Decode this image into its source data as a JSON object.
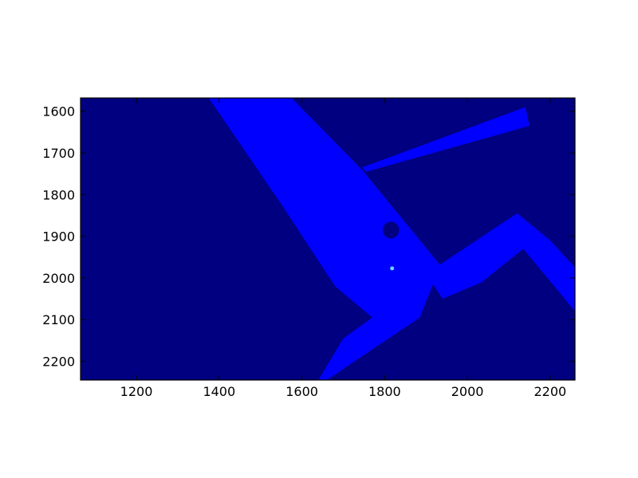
{
  "chart_data": {
    "type": "heatmap",
    "title": "",
    "xlabel": "",
    "ylabel": "",
    "xlim": [
      1065,
      2260
    ],
    "ylim": [
      2245,
      1568
    ],
    "y_inverted": true,
    "x_ticks": [
      1200,
      1400,
      1600,
      1800,
      2000,
      2200
    ],
    "y_ticks": [
      1600,
      1700,
      1800,
      1900,
      2000,
      2100,
      2200
    ],
    "x_tick_labels": [
      "1200",
      "1400",
      "1600",
      "1800",
      "2000",
      "2200"
    ],
    "y_tick_labels": [
      "1600",
      "1700",
      "1800",
      "1900",
      "2000",
      "2100",
      "2200"
    ],
    "grid": false,
    "legend": "none",
    "colors": {
      "background": "#000080",
      "region": "#0000ff",
      "marker": "#6fd0ff"
    },
    "regions": [
      {
        "name": "main-corridor",
        "points": [
          [
            1375,
            1568
          ],
          [
            1575,
            1568
          ],
          [
            1745,
            1740
          ],
          [
            1935,
            1970
          ],
          [
            1885,
            2095
          ],
          [
            1660,
            2245
          ],
          [
            1640,
            2245
          ],
          [
            1700,
            2145
          ],
          [
            1770,
            2095
          ],
          [
            1680,
            2020
          ],
          [
            1555,
            1830
          ]
        ]
      },
      {
        "name": "east-branch",
        "points": [
          [
            1900,
            1990
          ],
          [
            2120,
            1845
          ],
          [
            2200,
            1910
          ],
          [
            2260,
            1975
          ],
          [
            2260,
            2080
          ],
          [
            2135,
            1930
          ],
          [
            2035,
            2010
          ],
          [
            1940,
            2050
          ]
        ]
      },
      {
        "name": "northeast-ray",
        "points": [
          [
            1745,
            1735
          ],
          [
            2140,
            1590
          ],
          [
            2150,
            1635
          ],
          [
            1755,
            1745
          ]
        ]
      }
    ],
    "holes": [
      {
        "name": "dark-blob",
        "center": [
          1815,
          1885
        ],
        "radius": 20
      }
    ],
    "markers": [
      {
        "name": "cyan-point",
        "x": 1818,
        "y": 1977
      }
    ]
  }
}
